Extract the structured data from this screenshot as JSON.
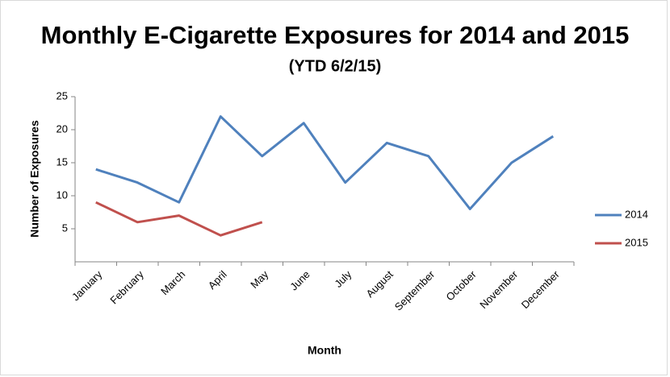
{
  "chart_data": {
    "type": "line",
    "title": "Monthly E-Cigarette Exposures for 2014 and 2015",
    "subtitle": "(YTD 6/2/15)",
    "x_label": "Month",
    "y_label": "Number of Exposures",
    "categories": [
      "January",
      "February",
      "March",
      "April",
      "May",
      "June",
      "July",
      "August",
      "September",
      "October",
      "November",
      "December"
    ],
    "series": [
      {
        "name": "2014",
        "color": "#4f81bd",
        "values": [
          14,
          12,
          9,
          22,
          16,
          21,
          12,
          18,
          16,
          8,
          15,
          19
        ]
      },
      {
        "name": "2015",
        "color": "#c0504d",
        "values": [
          9,
          6,
          7,
          4,
          6,
          null,
          null,
          null,
          null,
          null,
          null,
          null
        ]
      }
    ],
    "ylim": [
      0,
      25
    ],
    "yticks": [
      5,
      10,
      15,
      20,
      25
    ],
    "grid": false,
    "legend": "right"
  }
}
